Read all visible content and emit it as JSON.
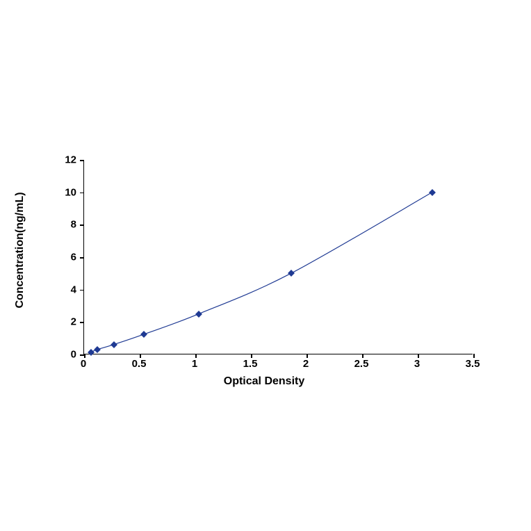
{
  "chart": {
    "type": "line",
    "xlabel": "Optical Density",
    "ylabel": "Concentration(ng/mL)",
    "label_fontsize": 16,
    "tick_fontsize": 15,
    "xlim": [
      0,
      3.5
    ],
    "ylim": [
      0,
      12
    ],
    "xtick_step": 0.5,
    "ytick_step": 2,
    "x_ticks": [
      0,
      0.5,
      1,
      1.5,
      2,
      2.5,
      3,
      3.5
    ],
    "y_ticks": [
      0,
      2,
      4,
      6,
      8,
      10,
      12
    ],
    "line_color": "#1f3a93",
    "marker_color": "#1f3a93",
    "marker_style": "diamond",
    "marker_size": 7,
    "line_width": 1.2,
    "background_color": "#ffffff",
    "data_points": [
      {
        "x": 0.06,
        "y": 0.15
      },
      {
        "x": 0.12,
        "y": 0.31
      },
      {
        "x": 0.27,
        "y": 0.62
      },
      {
        "x": 0.54,
        "y": 1.25
      },
      {
        "x": 1.03,
        "y": 2.5
      },
      {
        "x": 1.86,
        "y": 5.0
      },
      {
        "x": 3.13,
        "y": 10.0
      }
    ]
  }
}
